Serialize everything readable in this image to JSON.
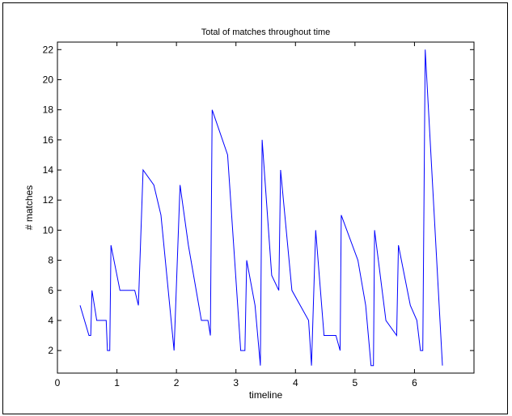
{
  "chart_data": {
    "type": "line",
    "title": "Total of matches throughout time",
    "xlabel": "timeline",
    "ylabel": "# matches",
    "xlim": [
      0,
      7
    ],
    "ylim": [
      0.5,
      22.5
    ],
    "xticks": [
      0,
      1,
      2,
      3,
      4,
      5,
      6
    ],
    "yticks": [
      2,
      4,
      6,
      8,
      10,
      12,
      14,
      16,
      18,
      20,
      22
    ],
    "grid": false,
    "series": [
      {
        "color": "#0000ff",
        "x": [
          0.38,
          0.53,
          0.56,
          0.58,
          0.66,
          0.72,
          0.82,
          0.84,
          0.88,
          0.9,
          1.05,
          1.3,
          1.36,
          1.44,
          1.62,
          1.74,
          1.96,
          2.06,
          2.2,
          2.42,
          2.53,
          2.57,
          2.6,
          2.86,
          3.08,
          3.15,
          3.18,
          3.32,
          3.41,
          3.44,
          3.6,
          3.72,
          3.75,
          3.94,
          4.22,
          4.27,
          4.34,
          4.48,
          4.68,
          4.75,
          4.77,
          5.05,
          5.18,
          5.27,
          5.31,
          5.33,
          5.52,
          5.7,
          5.73,
          5.93,
          6.04,
          6.1,
          6.14,
          6.18,
          6.47
        ],
        "y": [
          5,
          3,
          3,
          6,
          4,
          4,
          4,
          2,
          2,
          9,
          6,
          6,
          5,
          14,
          13,
          11,
          2,
          13,
          9,
          4,
          4,
          3,
          18,
          15,
          2,
          2,
          8,
          5,
          1,
          16,
          7,
          6,
          14,
          6,
          4,
          1,
          10,
          3,
          3,
          2,
          11,
          8,
          5,
          1,
          1,
          10,
          4,
          3,
          9,
          5,
          4,
          2,
          2,
          22,
          1
        ]
      }
    ]
  }
}
